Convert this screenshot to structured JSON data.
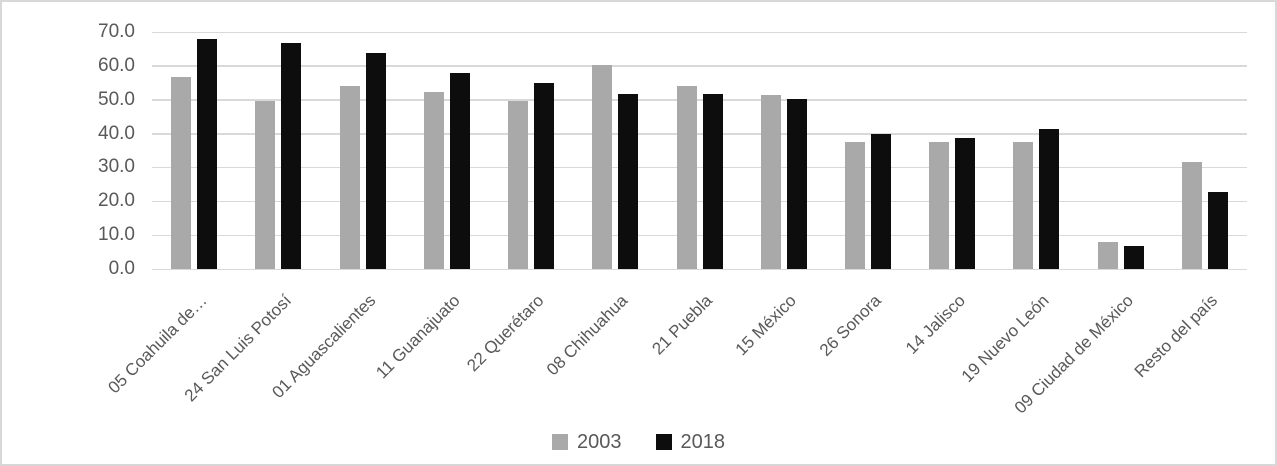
{
  "chart_data": {
    "type": "bar",
    "title": "",
    "xlabel": "",
    "ylabel": "",
    "categories": [
      "05 Coahuila de…",
      "24 San Luis Potosí",
      "01 Aguascalientes",
      "11 Guanajuato",
      "22 Querétaro",
      "08 Chihuahua",
      "21 Puebla",
      "15 México",
      "26 Sonora",
      "14 Jalisco",
      "19 Nuevo León",
      "09 Ciudad de México",
      "Resto del país"
    ],
    "series": [
      {
        "name": "2003",
        "color": "#a9a9a9",
        "values": [
          56.8,
          49.7,
          54.0,
          52.2,
          49.6,
          60.2,
          54.0,
          51.5,
          37.4,
          37.4,
          37.4,
          7.9,
          31.5
        ]
      },
      {
        "name": "2018",
        "color": "#0d0d0d",
        "values": [
          67.8,
          66.7,
          63.8,
          57.9,
          54.9,
          51.7,
          51.7,
          50.1,
          39.9,
          38.7,
          41.3,
          6.7,
          22.7
        ]
      }
    ],
    "ylim": [
      0,
      70
    ],
    "y_ticks": [
      {
        "value": 0,
        "label": "0.0"
      },
      {
        "value": 10,
        "label": "10.0"
      },
      {
        "value": 20,
        "label": "20.0"
      },
      {
        "value": 30,
        "label": "30.0"
      },
      {
        "value": 40,
        "label": "40.0"
      },
      {
        "value": 50,
        "label": "50.0"
      },
      {
        "value": 60,
        "label": "60.0"
      },
      {
        "value": 70,
        "label": "70.0"
      }
    ],
    "grid": "horizontal",
    "legend_position": "bottom"
  },
  "colors": {
    "gridline": "#d9d9d9",
    "axis_text": "#595959",
    "frame_border": "#d8d8d8",
    "background": "#ffffff"
  }
}
